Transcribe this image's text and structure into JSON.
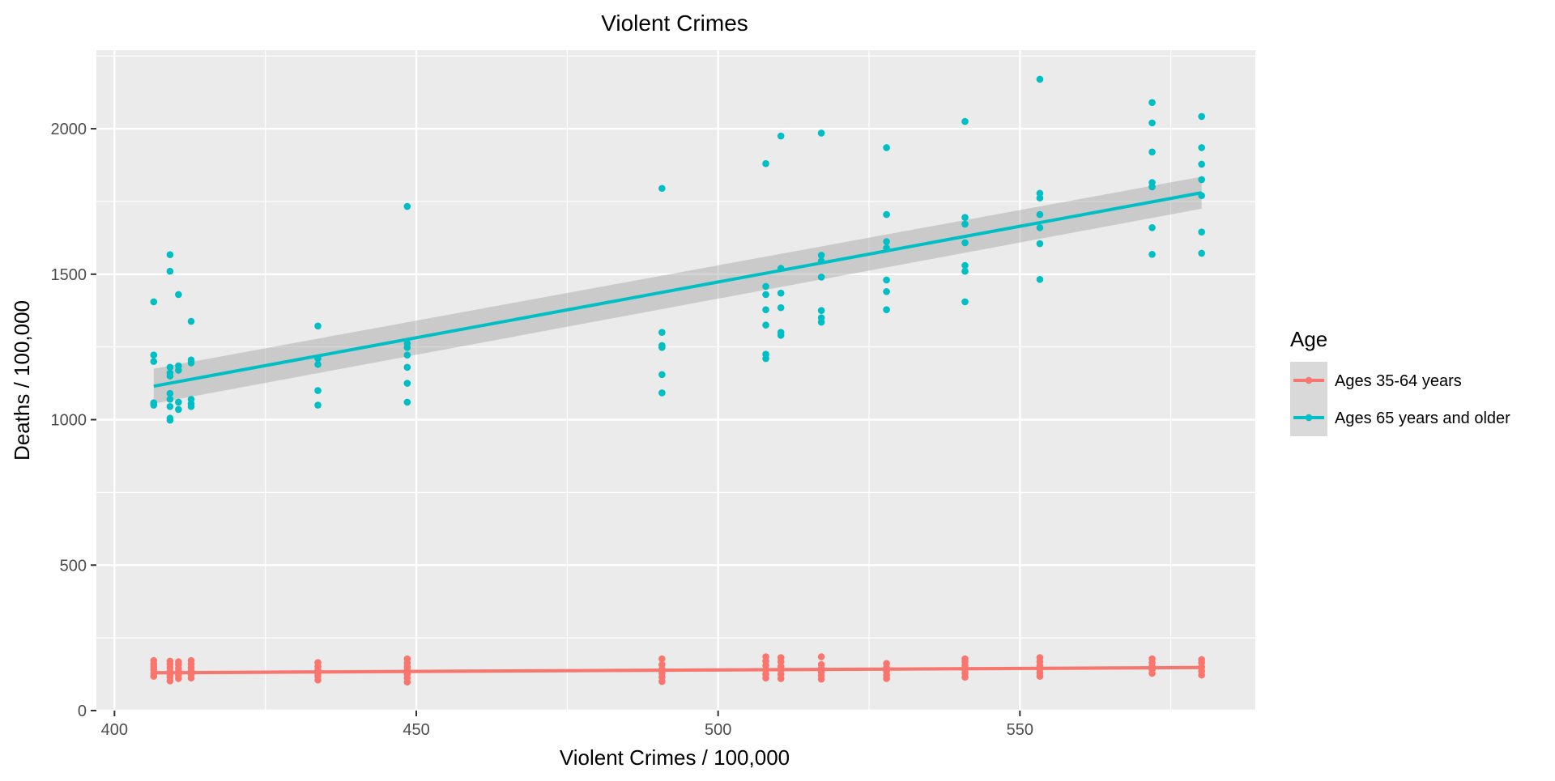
{
  "chart_data": {
    "type": "scatter",
    "title": "Violent Crimes",
    "xlabel": "Violent Crimes / 100,000",
    "ylabel": "Deaths / 100,000",
    "xlim": [
      397,
      589
    ],
    "ylim": [
      0,
      2270
    ],
    "x_ticks": [
      400,
      450,
      500,
      550
    ],
    "y_ticks": [
      0,
      500,
      1000,
      1500,
      2000
    ],
    "x_tick_labels": [
      "400",
      "450",
      "500",
      "550"
    ],
    "y_tick_labels": [
      "0",
      "500",
      "1000",
      "1500",
      "2000"
    ],
    "grid": true,
    "legend": {
      "title": "Age",
      "position": "right"
    },
    "background": "#EBEBEB",
    "series": [
      {
        "name": "Ages 35-64 years",
        "color": "#F8766D",
        "fit": {
          "x": [
            406.5,
            580.1
          ],
          "y": [
            130,
            148
          ],
          "ci_halfwidth": [
            6,
            6
          ]
        },
        "points": [
          {
            "x": 406.5,
            "y": [
              118,
              128,
              140,
              150,
              160,
              172
            ]
          },
          {
            "x": 409.2,
            "y": [
              102,
              115,
              125,
              135,
              148,
              160,
              170
            ]
          },
          {
            "x": 410.6,
            "y": [
              110,
              122,
              135,
              145,
              158,
              168
            ]
          },
          {
            "x": 412.7,
            "y": [
              112,
              124,
              136,
              148,
              160,
              172
            ]
          },
          {
            "x": 433.7,
            "y": [
              105,
              118,
              128,
              140,
              152,
              165
            ]
          },
          {
            "x": 448.5,
            "y": [
              98,
              112,
              125,
              138,
              150,
              163,
              178
            ]
          },
          {
            "x": 490.7,
            "y": [
              100,
              115,
              128,
              142,
              158,
              178
            ]
          },
          {
            "x": 507.9,
            "y": [
              112,
              125,
              140,
              155,
              170,
              185
            ]
          },
          {
            "x": 510.4,
            "y": [
              110,
              124,
              138,
              152,
              168,
              182
            ]
          },
          {
            "x": 517.1,
            "y": [
              108,
              120,
              132,
              145,
              158,
              185
            ]
          },
          {
            "x": 527.9,
            "y": [
              110,
              122,
              135,
              148,
              162
            ]
          },
          {
            "x": 540.9,
            "y": [
              115,
              128,
              140,
              155,
              168,
              178
            ]
          },
          {
            "x": 553.3,
            "y": [
              118,
              130,
              142,
              155,
              168,
              182
            ]
          },
          {
            "x": 571.9,
            "y": [
              128,
              140,
              152,
              165,
              178
            ]
          },
          {
            "x": 580.1,
            "y": [
              122,
              135,
              150,
              165,
              175
            ]
          }
        ]
      },
      {
        "name": "Ages 65 years and older",
        "color": "#00BFC4",
        "fit": {
          "x": [
            406.5,
            580.1
          ],
          "y": [
            1115,
            1780
          ],
          "ci_halfwidth": [
            60,
            55
          ]
        },
        "points": [
          {
            "x": 406.5,
            "y": [
              1405,
              1222,
              1200,
              1058,
              1050
            ]
          },
          {
            "x": 409.2,
            "y": [
              1567,
              1510,
              1180,
              1160,
              1090,
              1070,
              1045,
              1005,
              998,
              1150
            ]
          },
          {
            "x": 410.6,
            "y": [
              1430,
              1185,
              1170,
              1060,
              1035
            ]
          },
          {
            "x": 412.7,
            "y": [
              1338,
              1205,
              1195,
              1070,
              1055,
              1045
            ]
          },
          {
            "x": 433.7,
            "y": [
              1322,
              1210,
              1190,
              1100,
              1050
            ]
          },
          {
            "x": 448.5,
            "y": [
              1733,
              1262,
              1248,
              1222,
              1180,
              1125,
              1060
            ]
          },
          {
            "x": 490.7,
            "y": [
              1795,
              1300,
              1255,
              1248,
              1155,
              1092
            ]
          },
          {
            "x": 507.9,
            "y": [
              1880,
              1458,
              1430,
              1378,
              1325,
              1225,
              1210
            ]
          },
          {
            "x": 510.4,
            "y": [
              1975,
              1520,
              1435,
              1385,
              1300,
              1290
            ]
          },
          {
            "x": 517.1,
            "y": [
              1985,
              1565,
              1545,
              1490,
              1375,
              1350,
              1335
            ]
          },
          {
            "x": 527.9,
            "y": [
              1935,
              1705,
              1612,
              1590,
              1480,
              1440,
              1378
            ]
          },
          {
            "x": 540.9,
            "y": [
              2025,
              1695,
              1672,
              1608,
              1530,
              1510,
              1405
            ]
          },
          {
            "x": 553.3,
            "y": [
              2170,
              1778,
              1762,
              1705,
              1660,
              1605,
              1482
            ]
          },
          {
            "x": 571.9,
            "y": [
              2090,
              2020,
              1920,
              1815,
              1800,
              1660,
              1568
            ]
          },
          {
            "x": 580.1,
            "y": [
              2042,
              1935,
              1878,
              1825,
              1770,
              1645,
              1572
            ]
          }
        ]
      }
    ]
  }
}
